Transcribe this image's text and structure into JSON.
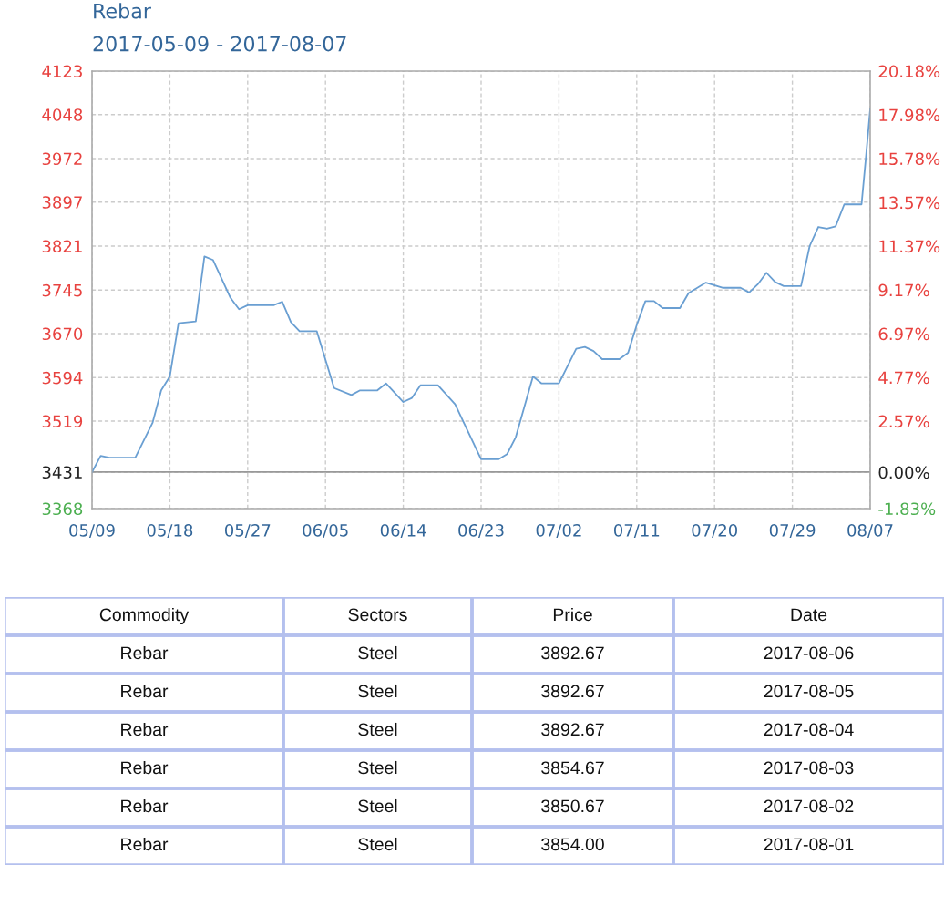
{
  "chart_data": [
    {
      "type": "line",
      "title": "Rebar",
      "subtitle": "2017-05-09 - 2017-08-07",
      "x": [
        "2017-05-09",
        "2017-05-10",
        "2017-05-11",
        "2017-05-14",
        "2017-05-16",
        "2017-05-17",
        "2017-05-18",
        "2017-05-19",
        "2017-05-21",
        "2017-05-22",
        "2017-05-23",
        "2017-05-25",
        "2017-05-26",
        "2017-05-27",
        "2017-05-30",
        "2017-05-31",
        "2017-06-01",
        "2017-06-02",
        "2017-06-04",
        "2017-06-06",
        "2017-06-08",
        "2017-06-09",
        "2017-06-11",
        "2017-06-12",
        "2017-06-14",
        "2017-06-15",
        "2017-06-16",
        "2017-06-18",
        "2017-06-20",
        "2017-06-23",
        "2017-06-25",
        "2017-06-26",
        "2017-06-27",
        "2017-06-29",
        "2017-06-30",
        "2017-07-02",
        "2017-07-04",
        "2017-07-05",
        "2017-07-06",
        "2017-07-07",
        "2017-07-09",
        "2017-07-10",
        "2017-07-11",
        "2017-07-12",
        "2017-07-13",
        "2017-07-14",
        "2017-07-16",
        "2017-07-17",
        "2017-07-19",
        "2017-07-21",
        "2017-07-23",
        "2017-07-24",
        "2017-07-25",
        "2017-07-26",
        "2017-07-27",
        "2017-07-28",
        "2017-07-30",
        "2017-07-31",
        "2017-08-01",
        "2017-08-02",
        "2017-08-03",
        "2017-08-04",
        "2017-08-06",
        "2017-08-06T12:00",
        "2017-08-07"
      ],
      "series": [
        {
          "color": "#6a9fd2",
          "values": [
            3431,
            3459,
            3456,
            3456,
            3516,
            3572,
            3596,
            3688,
            3691,
            3803,
            3797,
            3732,
            3712,
            3719,
            3719,
            3725,
            3690,
            3674,
            3674,
            3576,
            3564,
            3572,
            3572,
            3584,
            3552,
            3559,
            3581,
            3581,
            3548,
            3453,
            3453,
            3462,
            3491,
            3596,
            3584,
            3584,
            3644,
            3647,
            3640,
            3626,
            3626,
            3637,
            3685,
            3726,
            3726,
            3714,
            3714,
            3740,
            3758,
            3749,
            3749,
            3741,
            3755,
            3775,
            3759,
            3752,
            3752,
            3821,
            3854,
            3851,
            3855,
            3893,
            3893,
            3973,
            4057
          ]
        }
      ],
      "xlim": [
        "2017-05-09",
        "2017-08-07"
      ],
      "xticks": [
        {
          "value": "2017-05-09",
          "label": "05/09"
        },
        {
          "value": "2017-05-18",
          "label": "05/18"
        },
        {
          "value": "2017-05-27",
          "label": "05/27"
        },
        {
          "value": "2017-06-05",
          "label": "06/05"
        },
        {
          "value": "2017-06-14",
          "label": "06/14"
        },
        {
          "value": "2017-06-23",
          "label": "06/23"
        },
        {
          "value": "2017-07-02",
          "label": "07/02"
        },
        {
          "value": "2017-07-11",
          "label": "07/11"
        },
        {
          "value": "2017-07-20",
          "label": "07/20"
        },
        {
          "value": "2017-07-29",
          "label": "07/29"
        },
        {
          "value": "2017-08-07",
          "label": "08/07"
        }
      ],
      "ylim": [
        3368,
        4123
      ],
      "yticks": [
        3368,
        3431,
        3519,
        3594,
        3670,
        3745,
        3821,
        3897,
        3972,
        4048,
        4123
      ],
      "y2lim": [
        -1.83,
        20.18
      ],
      "y2ticks": [
        {
          "value": -1.83,
          "label": "-1.83%"
        },
        {
          "value": 0,
          "label": "0.00%"
        },
        {
          "value": 2.57,
          "label": "2.57%"
        },
        {
          "value": 4.77,
          "label": "4.77%"
        },
        {
          "value": 6.97,
          "label": "6.97%"
        },
        {
          "value": 9.17,
          "label": "9.17%"
        },
        {
          "value": 11.37,
          "label": "11.37%"
        },
        {
          "value": 13.57,
          "label": "13.57%"
        },
        {
          "value": 15.78,
          "label": "15.78%"
        },
        {
          "value": 17.98,
          "label": "17.98%"
        },
        {
          "value": 20.18,
          "label": "20.18%"
        }
      ],
      "ref_lines": [
        {
          "axis": "y",
          "value": 3431,
          "color": "#999999"
        }
      ],
      "grid": true,
      "line_style": "solid",
      "marker": "none",
      "legend": false
    },
    {
      "type": "other",
      "categories": [
        "Commodity",
        "Sectors",
        "Price",
        "Date"
      ],
      "annotations": [
        "Rebar",
        "Steel",
        "3892.67",
        "2017-08-06",
        "Rebar",
        "Steel",
        "3892.67",
        "2017-08-05",
        "Rebar",
        "Steel",
        "3892.67",
        "2017-08-04",
        "Rebar",
        "Steel",
        "3854.67",
        "2017-08-03",
        "Rebar",
        "Steel",
        "3850.67",
        "2017-08-02",
        "Rebar",
        "Steel",
        "3854.00",
        "2017-08-01"
      ]
    }
  ]
}
